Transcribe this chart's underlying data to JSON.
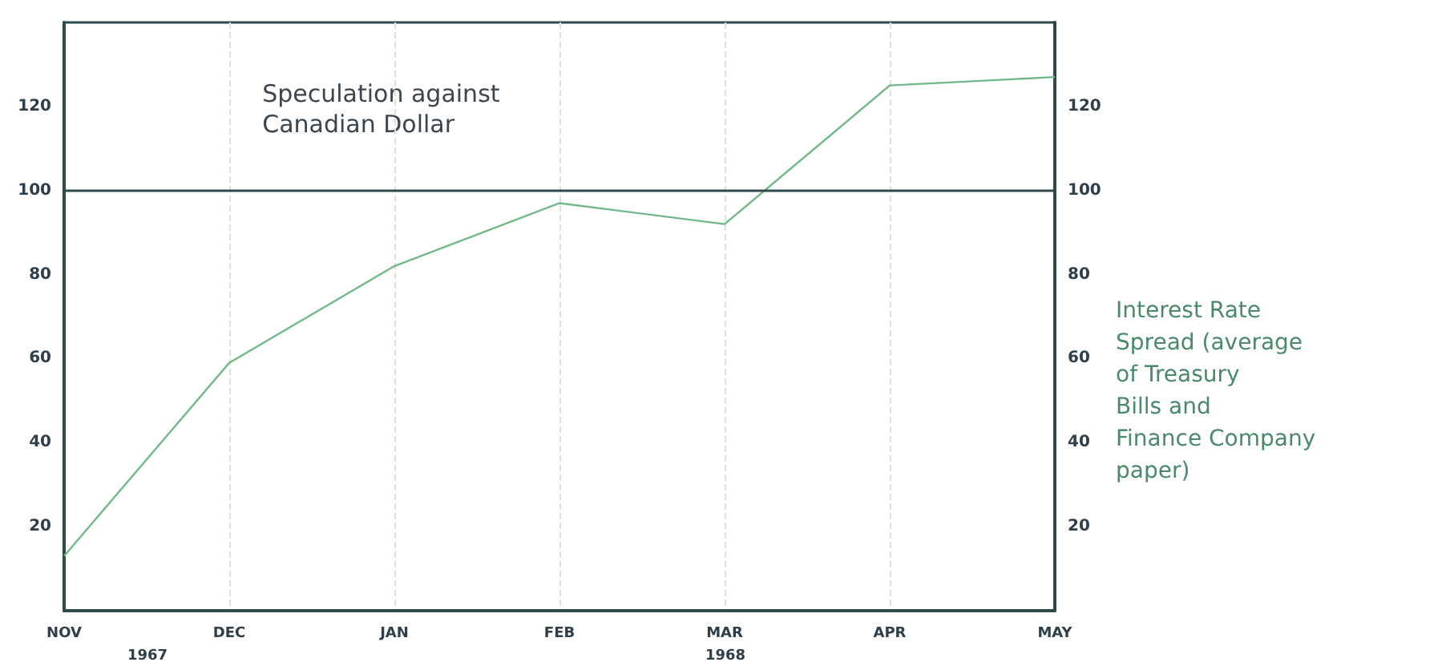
{
  "chart_data": {
    "type": "line",
    "categories": [
      "NOV",
      "DEC",
      "JAN",
      "FEB",
      "MAR",
      "APR",
      "MAY"
    ],
    "series": [
      {
        "color": "#6fb888",
        "values": [
          13,
          59,
          82,
          97,
          92,
          125,
          127
        ]
      }
    ],
    "ylim": [
      0,
      140
    ],
    "yticks": [
      20,
      40,
      60,
      80,
      100,
      120
    ],
    "y2lim": [
      0,
      140
    ],
    "y2ticks": [
      20,
      40,
      60,
      80,
      100,
      120
    ],
    "ref_lines": [
      {
        "axis": "y",
        "value": 100,
        "color": "#2f4a4a"
      }
    ],
    "annotations": [
      "Speculation against\nCanadian Dollar",
      "Interest Rate\nSpread (average\nof Treasury\nBills and\nFinance Company\npaper)",
      "1967",
      "1968"
    ],
    "grid": "x",
    "marker": "none",
    "line_style": "solid"
  }
}
